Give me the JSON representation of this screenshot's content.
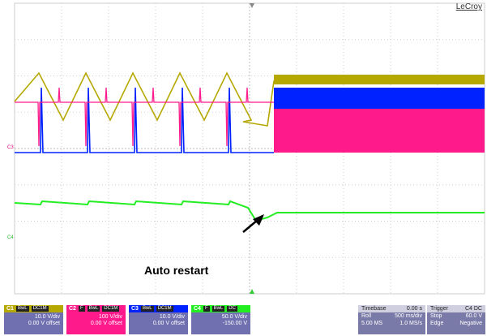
{
  "brand": "LeCroy",
  "annotation": "Auto restart",
  "side_labels": {
    "c3": "C3",
    "c4": "C4"
  },
  "colors": {
    "c1": "#b5a800",
    "c2": "#ff1a8c",
    "c3": "#0022ff",
    "c4": "#22ee22",
    "grid": "#cfcfcf",
    "panel": "#7070b0"
  },
  "channels": [
    {
      "name": "C1",
      "tags": [
        "BwL",
        "DC1M"
      ],
      "line1": "10.0 V/div",
      "line2": "0.00 V offset",
      "head_color": "#b5a800"
    },
    {
      "name": "C2",
      "tags": [
        "F",
        "BwL",
        "DC1M"
      ],
      "line1": "100 V/div",
      "line2": "0.00 V offset",
      "head_color": "#ff1a8c"
    },
    {
      "name": "C3",
      "tags": [
        "BwL",
        "DC1M"
      ],
      "line1": "10.0 V/div",
      "line2": "0.00 V offset",
      "head_color": "#0022ff"
    },
    {
      "name": "C4",
      "tags": [
        "F",
        "BwL",
        "DC"
      ],
      "line1": "50.0 V/div",
      "line2": "-150.00 V",
      "head_color": "#22ee22"
    }
  ],
  "timebase": {
    "title": "Timebase",
    "value": "0.00 s",
    "mode": "Roll",
    "div": "500 ms/div",
    "samples": "5.00 MS",
    "rate": "1.0 MS/s"
  },
  "trigger": {
    "title": "Trigger",
    "source": "C4",
    "coupling": "DC",
    "mode": "Stop",
    "level": "60.0 V",
    "type": "Edge",
    "slope": "Negative"
  }
}
